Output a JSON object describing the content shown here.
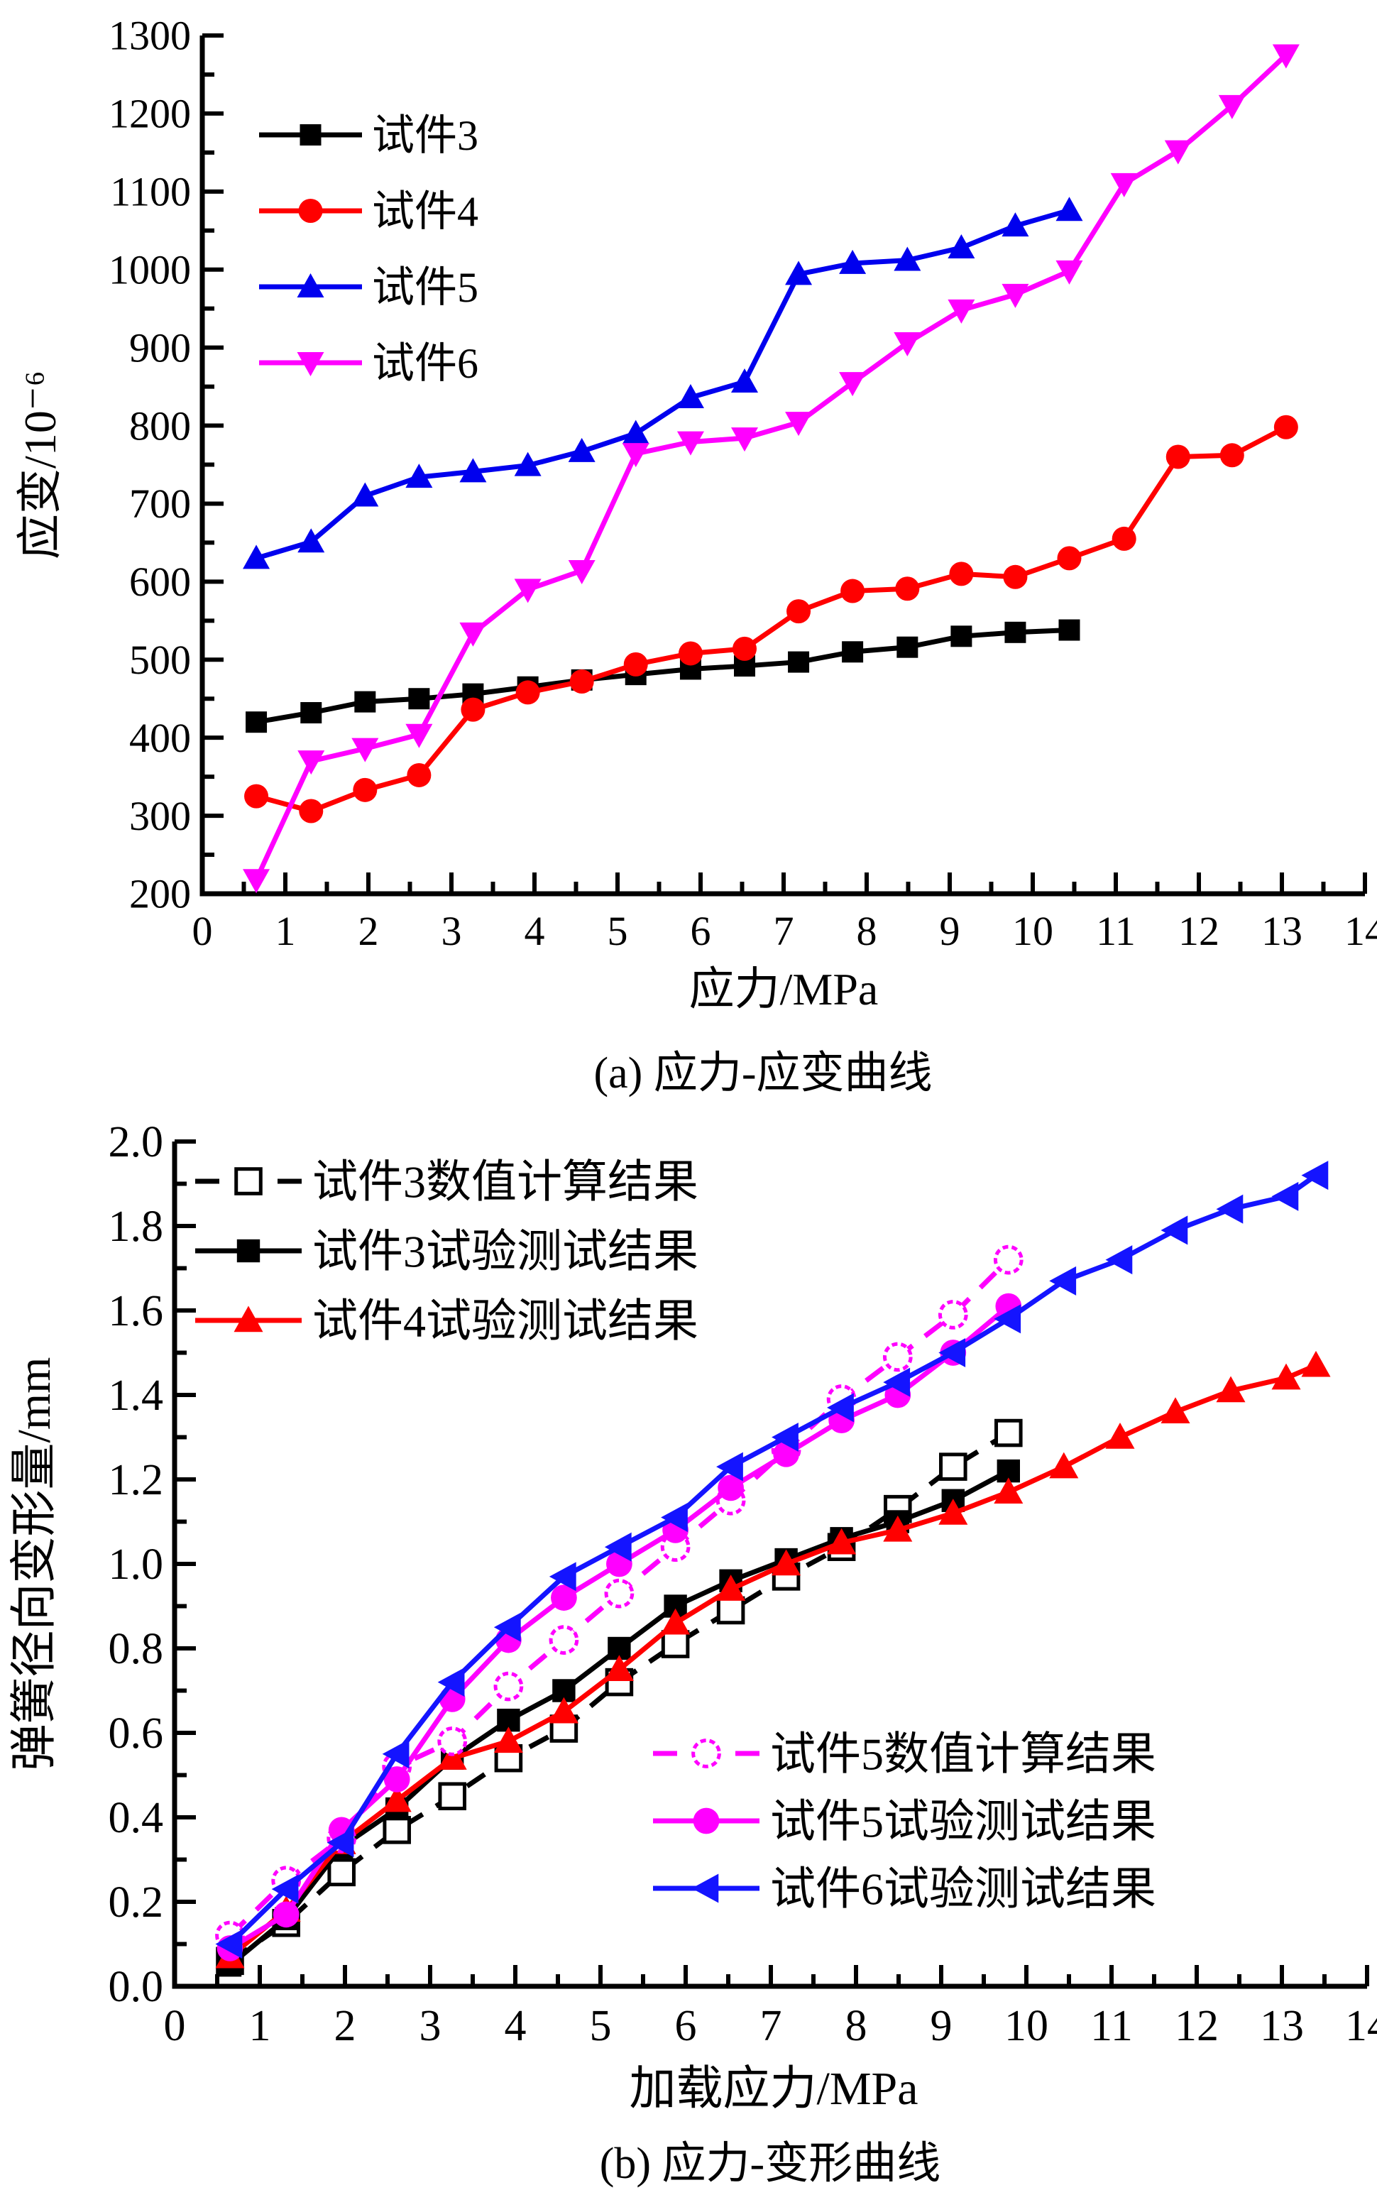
{
  "figure": {
    "background": "#ffffff",
    "caption_a": "(a) 应力-应变曲线",
    "caption_b": "(b) 应力-变形曲线"
  },
  "chart_data": [
    {
      "type": "line",
      "title": "(a) 应力-应变曲线",
      "xlabel": "应力/MPa",
      "ylabel": "应变/10⁻⁶",
      "xlim": [
        0,
        14
      ],
      "ylim": [
        200,
        1300
      ],
      "grid": false,
      "legend_position": "upper-left",
      "xticks": [
        "0",
        "1",
        "2",
        "3",
        "4",
        "5",
        "6",
        "7",
        "8",
        "9",
        "10",
        "11",
        "12",
        "13",
        "14"
      ],
      "yticks": [
        "200",
        "300",
        "400",
        "500",
        "600",
        "700",
        "800",
        "900",
        "1000",
        "1100",
        "1200",
        "1300"
      ],
      "series": [
        {
          "name": "试件3",
          "color": "#000000",
          "marker": "square",
          "line": "solid",
          "x": [
            0.65,
            1.31,
            1.96,
            2.61,
            3.26,
            3.92,
            4.57,
            5.22,
            5.88,
            6.53,
            7.18,
            7.83,
            8.49,
            9.14,
            9.79,
            10.44
          ],
          "y": [
            420,
            432,
            446,
            450,
            456,
            465,
            474,
            481,
            488,
            492,
            497,
            510,
            516,
            530,
            535,
            538
          ]
        },
        {
          "name": "试件4",
          "color": "#ff0000",
          "marker": "circle",
          "line": "solid",
          "x": [
            0.65,
            1.31,
            1.96,
            2.61,
            3.26,
            3.92,
            4.57,
            5.22,
            5.88,
            6.53,
            7.18,
            7.83,
            8.49,
            9.14,
            9.79,
            10.44,
            11.1,
            11.75,
            12.4,
            13.05
          ],
          "y": [
            325,
            306,
            333,
            352,
            436,
            458,
            472,
            494,
            508,
            514,
            562,
            588,
            591,
            610,
            606,
            630,
            655,
            760,
            762,
            798
          ]
        },
        {
          "name": "试件5",
          "color": "#0000ee",
          "marker": "triangle-up",
          "line": "solid",
          "x": [
            0.65,
            1.31,
            1.96,
            2.61,
            3.26,
            3.92,
            4.57,
            5.22,
            5.88,
            6.53,
            7.18,
            7.83,
            8.49,
            9.14,
            9.79,
            10.44
          ],
          "y": [
            630,
            651,
            710,
            734,
            741,
            749,
            767,
            790,
            836,
            856,
            994,
            1008,
            1012,
            1028,
            1056,
            1076
          ]
        },
        {
          "name": "试件6",
          "color": "#ff00ff",
          "marker": "triangle-down",
          "line": "solid",
          "x": [
            0.65,
            1.31,
            1.96,
            2.61,
            3.26,
            3.92,
            4.57,
            5.22,
            5.88,
            6.53,
            7.18,
            7.83,
            8.49,
            9.14,
            9.79,
            10.44,
            11.1,
            11.75,
            12.4,
            13.05
          ],
          "y": [
            218,
            370,
            386,
            404,
            534,
            590,
            614,
            764,
            779,
            784,
            804,
            855,
            906,
            948,
            968,
            998,
            1110,
            1152,
            1210,
            1275
          ]
        }
      ]
    },
    {
      "type": "line",
      "title": "(b) 应力-变形曲线",
      "xlabel": "加载应力/MPa",
      "ylabel": "弹簧径向变形量/mm",
      "xlim": [
        0,
        14
      ],
      "ylim": [
        0,
        2
      ],
      "grid": false,
      "legend_position": "upper-left and lower-right",
      "xticks": [
        "0",
        "1",
        "2",
        "3",
        "4",
        "5",
        "6",
        "7",
        "8",
        "9",
        "10",
        "11",
        "12",
        "13",
        "14"
      ],
      "yticks": [
        "0.0",
        "0.2",
        "0.4",
        "0.6",
        "0.8",
        "1.0",
        "1.2",
        "1.4",
        "1.6",
        "1.8",
        "2.0"
      ],
      "series": [
        {
          "name": "试件3数值计算结果",
          "color": "#000000",
          "marker": "square-open",
          "line": "dashed",
          "x": [
            0.65,
            1.31,
            1.96,
            2.61,
            3.26,
            3.92,
            4.57,
            5.22,
            5.88,
            6.53,
            7.18,
            7.83,
            8.49,
            9.14,
            9.79
          ],
          "y": [
            0.06,
            0.15,
            0.27,
            0.37,
            0.45,
            0.54,
            0.61,
            0.72,
            0.81,
            0.89,
            0.97,
            1.04,
            1.13,
            1.23,
            1.31
          ]
        },
        {
          "name": "试件3试验测试结果",
          "color": "#000000",
          "marker": "square",
          "line": "solid",
          "x": [
            0.65,
            1.31,
            1.96,
            2.61,
            3.26,
            3.92,
            4.57,
            5.22,
            5.88,
            6.53,
            7.18,
            7.83,
            8.49,
            9.14,
            9.79
          ],
          "y": [
            0.05,
            0.16,
            0.33,
            0.42,
            0.54,
            0.63,
            0.7,
            0.8,
            0.9,
            0.96,
            1.01,
            1.06,
            1.1,
            1.15,
            1.22
          ]
        },
        {
          "name": "试件4试验测试结果",
          "color": "#ff0000",
          "marker": "triangle-up",
          "line": "solid",
          "x": [
            0.65,
            1.31,
            1.96,
            2.61,
            3.26,
            3.92,
            4.57,
            5.22,
            5.88,
            6.53,
            7.18,
            7.83,
            8.49,
            9.14,
            9.79,
            10.44,
            11.1,
            11.75,
            12.4,
            13.05,
            13.4
          ],
          "y": [
            0.07,
            0.18,
            0.34,
            0.44,
            0.54,
            0.58,
            0.65,
            0.75,
            0.86,
            0.94,
            1.0,
            1.05,
            1.08,
            1.12,
            1.17,
            1.23,
            1.3,
            1.36,
            1.41,
            1.44,
            1.47
          ]
        },
        {
          "name": "试件5数值计算结果",
          "color": "#ff00ff",
          "marker": "circle-open",
          "line": "dashed",
          "x": [
            0.65,
            1.31,
            1.96,
            2.61,
            3.26,
            3.92,
            4.57,
            5.22,
            5.88,
            6.53,
            7.18,
            7.83,
            8.49,
            9.14,
            9.79
          ],
          "y": [
            0.12,
            0.25,
            0.35,
            0.52,
            0.58,
            0.71,
            0.82,
            0.93,
            1.04,
            1.15,
            1.27,
            1.39,
            1.49,
            1.59,
            1.72
          ]
        },
        {
          "name": "试件5试验测试结果",
          "color": "#ff00ff",
          "marker": "circle",
          "line": "solid",
          "x": [
            0.65,
            1.31,
            1.96,
            2.61,
            3.26,
            3.92,
            4.57,
            5.22,
            5.88,
            6.53,
            7.18,
            7.83,
            8.49,
            9.14,
            9.79
          ],
          "y": [
            0.09,
            0.17,
            0.37,
            0.49,
            0.68,
            0.82,
            0.92,
            1.0,
            1.08,
            1.18,
            1.26,
            1.34,
            1.4,
            1.5,
            1.61
          ]
        },
        {
          "name": "试件6试验测试结果",
          "color": "#1414ff",
          "marker": "triangle-left",
          "line": "solid",
          "x": [
            0.65,
            1.31,
            1.96,
            2.61,
            3.26,
            3.92,
            4.57,
            5.22,
            5.88,
            6.53,
            7.18,
            7.83,
            8.49,
            9.14,
            9.79,
            10.44,
            11.1,
            11.75,
            12.4,
            13.05,
            13.4
          ],
          "y": [
            0.1,
            0.23,
            0.34,
            0.55,
            0.72,
            0.85,
            0.97,
            1.04,
            1.11,
            1.23,
            1.3,
            1.37,
            1.43,
            1.5,
            1.58,
            1.67,
            1.72,
            1.79,
            1.84,
            1.87,
            1.92
          ]
        }
      ]
    }
  ]
}
